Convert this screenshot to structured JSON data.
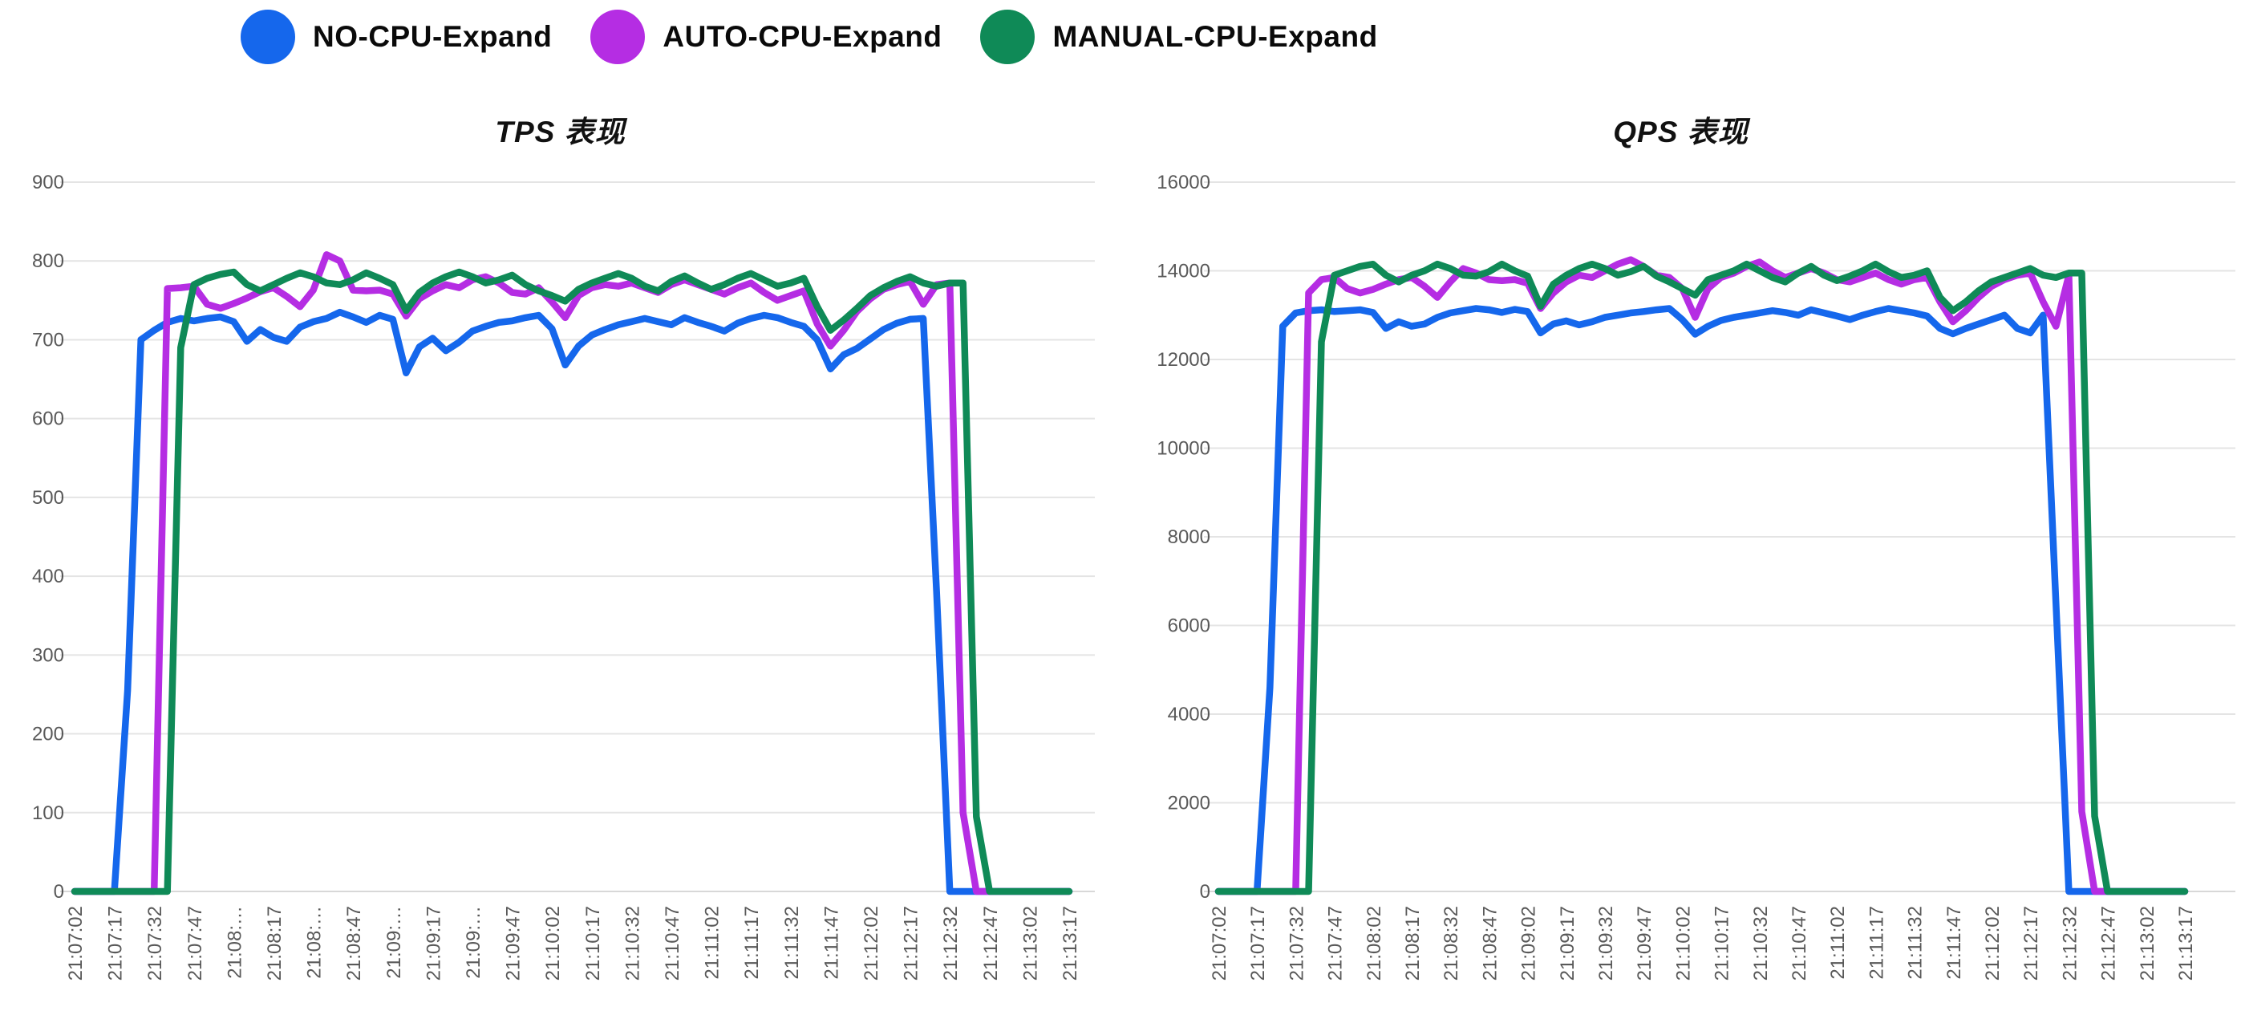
{
  "legend": {
    "items": [
      {
        "label": "NO-CPU-Expand",
        "color": "#1567EC"
      },
      {
        "label": "AUTO-CPU-Expand",
        "color": "#B52DE3"
      },
      {
        "label": "MANUAL-CPU-Expand",
        "color": "#0F8A57"
      }
    ]
  },
  "style_colors": {
    "grid": "#e4e4e4",
    "axis_line": "#d8d8d8",
    "tick_text": "#595959",
    "title_text": "#111111",
    "background": "#ffffff"
  },
  "chart_data": [
    {
      "type": "line",
      "title": "TPS 表现",
      "x_start": "21:07:02",
      "x_end": "21:13:17",
      "x_step_seconds": 5,
      "grid": true,
      "legend_position": "top",
      "ylim": [
        0,
        900
      ],
      "y_ticks": [
        0,
        100,
        200,
        300,
        400,
        500,
        600,
        700,
        800,
        900
      ],
      "x_tick_labels": [
        "21:07:02",
        "21:07:17",
        "21:07:32",
        "21:07:47",
        "21:08:…",
        "21:08:17",
        "21:08:…",
        "21:08:47",
        "21:09:…",
        "21:09:17",
        "21:09:…",
        "21:09:47",
        "21:10:02",
        "21:10:17",
        "21:10:32",
        "21:10:47",
        "21:11:02",
        "21:11:17",
        "21:11:32",
        "21:11:47",
        "21:12:02",
        "21:12:17",
        "21:12:32",
        "21:12:47",
        "21:13:02",
        "21:13:17"
      ],
      "series": [
        {
          "name": "NO-CPU-Expand",
          "color": "#1567EC",
          "values": [
            0,
            0,
            0,
            0,
            255,
            700,
            712,
            722,
            727,
            724,
            727,
            729,
            723,
            698,
            713,
            703,
            698,
            716,
            723,
            727,
            735,
            729,
            722,
            731,
            726,
            658,
            691,
            702,
            686,
            697,
            711,
            717,
            722,
            724,
            728,
            731,
            714,
            668,
            692,
            706,
            713,
            719,
            723,
            727,
            723,
            719,
            728,
            722,
            717,
            711,
            721,
            727,
            731,
            728,
            722,
            717,
            700,
            663,
            681,
            689,
            701,
            713,
            721,
            726,
            727,
            380,
            0,
            0,
            0,
            0,
            0,
            0,
            0,
            0,
            0,
            0
          ]
        },
        {
          "name": "AUTO-CPU-Expand",
          "color": "#B52DE3",
          "values": [
            0,
            0,
            0,
            0,
            0,
            0,
            0,
            765,
            766,
            768,
            745,
            740,
            746,
            753,
            761,
            766,
            755,
            742,
            763,
            808,
            800,
            763,
            762,
            763,
            758,
            730,
            752,
            762,
            770,
            766,
            776,
            780,
            772,
            760,
            758,
            766,
            748,
            728,
            756,
            766,
            770,
            768,
            772,
            766,
            760,
            770,
            776,
            770,
            764,
            758,
            766,
            772,
            760,
            750,
            756,
            762,
            720,
            692,
            712,
            736,
            752,
            764,
            770,
            774,
            745,
            770,
            772,
            100,
            0,
            0,
            0,
            0,
            0,
            0,
            0,
            0
          ]
        },
        {
          "name": "MANUAL-CPU-Expand",
          "color": "#0F8A57",
          "values": [
            0,
            0,
            0,
            0,
            0,
            0,
            0,
            0,
            690,
            770,
            778,
            783,
            786,
            770,
            762,
            770,
            778,
            785,
            780,
            772,
            770,
            776,
            785,
            778,
            770,
            737,
            760,
            772,
            780,
            786,
            780,
            772,
            776,
            782,
            770,
            762,
            756,
            749,
            764,
            772,
            778,
            784,
            778,
            768,
            762,
            774,
            781,
            772,
            764,
            770,
            778,
            784,
            776,
            768,
            772,
            778,
            742,
            712,
            725,
            740,
            756,
            766,
            774,
            780,
            772,
            768,
            772,
            772,
            95,
            0,
            0,
            0,
            0,
            0,
            0,
            0
          ]
        }
      ]
    },
    {
      "type": "line",
      "title": "QPS 表现",
      "x_start": "21:07:02",
      "x_end": "21:13:17",
      "x_step_seconds": 5,
      "grid": true,
      "legend_position": "top",
      "ylim": [
        0,
        16000
      ],
      "y_ticks": [
        0,
        2000,
        4000,
        6000,
        8000,
        10000,
        12000,
        14000,
        16000
      ],
      "x_tick_labels": [
        "21:07:02",
        "21:07:17",
        "21:07:32",
        "21:07:47",
        "21:08:02",
        "21:08:17",
        "21:08:32",
        "21:08:47",
        "21:09:02",
        "21:09:17",
        "21:09:32",
        "21:09:47",
        "21:10:02",
        "21:10:17",
        "21:10:32",
        "21:10:47",
        "21:11:02",
        "21:11:17",
        "21:11:32",
        "21:11:47",
        "21:12:02",
        "21:12:17",
        "21:12:32",
        "21:12:47",
        "21:13:02",
        "21:13:17"
      ],
      "series": [
        {
          "name": "NO-CPU-Expand",
          "color": "#1567EC",
          "values": [
            0,
            0,
            0,
            0,
            4600,
            12750,
            13050,
            13100,
            13120,
            13080,
            13100,
            13120,
            13060,
            12700,
            12850,
            12750,
            12800,
            12950,
            13050,
            13100,
            13150,
            13120,
            13060,
            13130,
            13080,
            12600,
            12800,
            12870,
            12780,
            12850,
            12950,
            13000,
            13050,
            13080,
            13120,
            13150,
            12900,
            12570,
            12750,
            12880,
            12950,
            13000,
            13050,
            13100,
            13060,
            13000,
            13120,
            13050,
            12980,
            12900,
            13000,
            13080,
            13150,
            13100,
            13050,
            12980,
            12700,
            12580,
            12700,
            12800,
            12900,
            13000,
            12700,
            12600,
            13000,
            6500,
            0,
            0,
            0,
            0,
            0,
            0,
            0,
            0,
            0,
            0
          ]
        },
        {
          "name": "AUTO-CPU-Expand",
          "color": "#B52DE3",
          "values": [
            0,
            0,
            0,
            0,
            0,
            0,
            0,
            13500,
            13800,
            13850,
            13600,
            13500,
            13580,
            13700,
            13800,
            13850,
            13650,
            13400,
            13750,
            14050,
            13950,
            13800,
            13780,
            13800,
            13720,
            13150,
            13500,
            13750,
            13900,
            13850,
            14000,
            14150,
            14250,
            14100,
            13900,
            13850,
            13600,
            12950,
            13600,
            13850,
            13950,
            14100,
            14200,
            14000,
            13850,
            13950,
            14050,
            13950,
            13800,
            13750,
            13850,
            13950,
            13800,
            13700,
            13800,
            13850,
            13300,
            12850,
            13100,
            13400,
            13650,
            13800,
            13900,
            13950,
            13300,
            12750,
            13900,
            1800,
            0,
            0,
            0,
            0,
            0,
            0,
            0,
            0
          ]
        },
        {
          "name": "MANUAL-CPU-Expand",
          "color": "#0F8A57",
          "values": [
            0,
            0,
            0,
            0,
            0,
            0,
            0,
            0,
            12400,
            13900,
            14000,
            14100,
            14150,
            13900,
            13750,
            13900,
            14000,
            14150,
            14050,
            13900,
            13880,
            13980,
            14150,
            14000,
            13880,
            13200,
            13700,
            13900,
            14050,
            14150,
            14050,
            13900,
            13980,
            14100,
            13880,
            13750,
            13600,
            13450,
            13800,
            13900,
            14000,
            14150,
            14000,
            13850,
            13750,
            13950,
            14100,
            13900,
            13780,
            13880,
            14000,
            14150,
            13980,
            13850,
            13900,
            14000,
            13400,
            13100,
            13300,
            13550,
            13750,
            13850,
            13950,
            14050,
            13900,
            13850,
            13950,
            13950,
            1700,
            0,
            0,
            0,
            0,
            0,
            0,
            0
          ]
        }
      ]
    }
  ]
}
